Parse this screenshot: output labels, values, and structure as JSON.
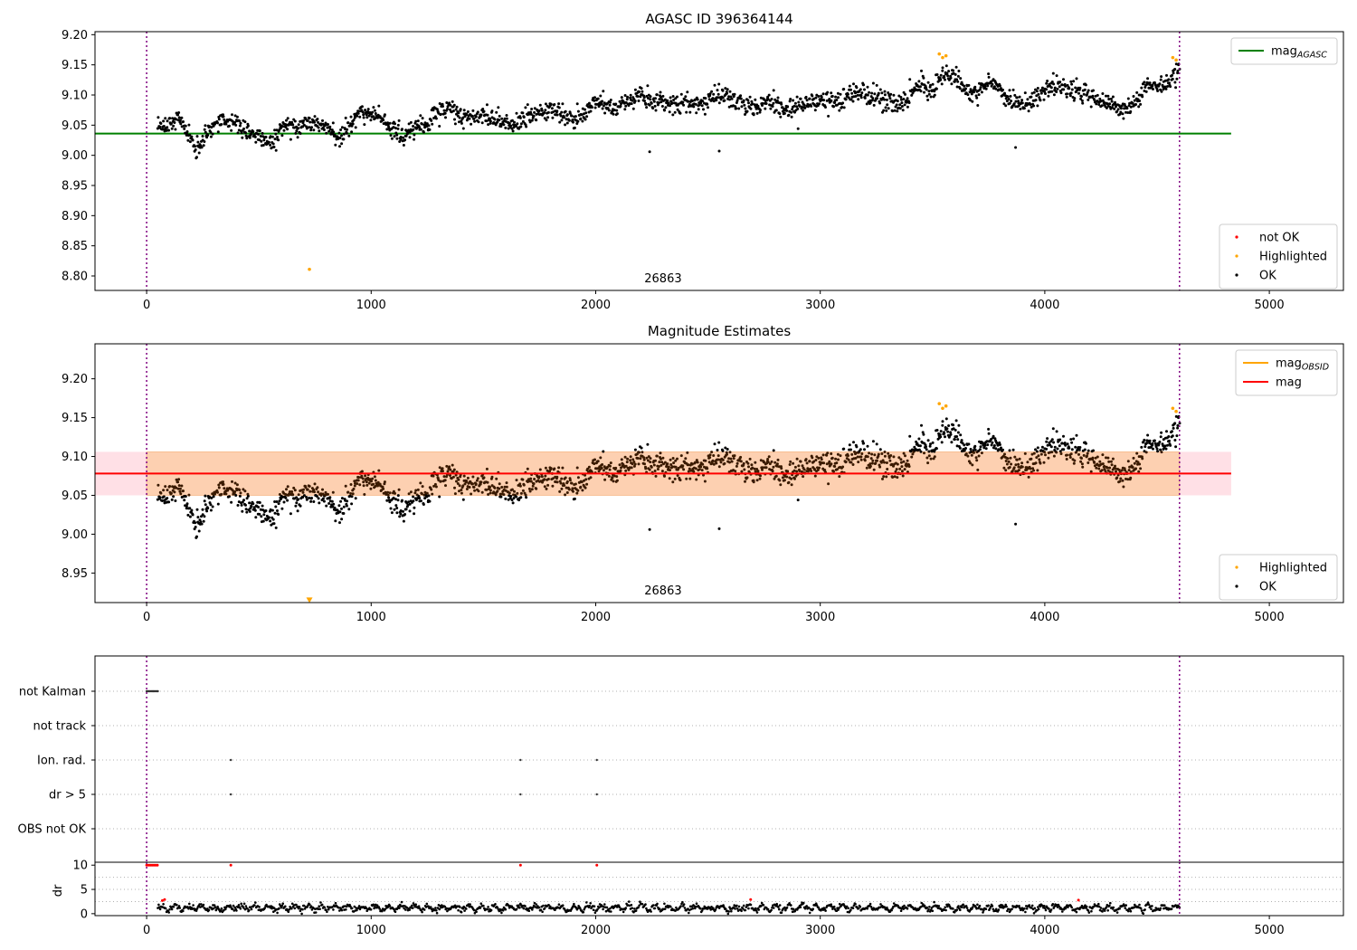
{
  "chart_data": [
    {
      "type": "scatter",
      "title": "AGASC ID 396364144",
      "xlabel": "",
      "ylabel": "",
      "xlim": [
        -230,
        5330
      ],
      "ylim": [
        8.776,
        9.205
      ],
      "xticks": [
        0,
        1000,
        2000,
        3000,
        4000,
        5000
      ],
      "yticks": [
        8.8,
        8.85,
        8.9,
        8.95,
        9.0,
        9.05,
        9.1,
        9.15,
        9.2
      ],
      "ytick_labels": [
        "8.80",
        "8.85",
        "8.90",
        "8.95",
        "9.00",
        "9.05",
        "9.10",
        "9.15",
        "9.20"
      ],
      "vlines": [
        0,
        4600
      ],
      "obsid_label": "26863",
      "obsid_label_x": 2300,
      "hline": {
        "name": "mag_AGASC",
        "value": 9.036,
        "x": [
          -230,
          4830
        ],
        "color": "#008000"
      },
      "line_legend": [
        {
          "label": "mag",
          "sub": "AGASC",
          "color": "#008000"
        }
      ],
      "point_legend": [
        {
          "label": "not OK",
          "color": "#ff0000"
        },
        {
          "label": "Highlighted",
          "color": "#ffa500"
        },
        {
          "label": "OK",
          "color": "#000000"
        }
      ],
      "series": [
        {
          "name": "OK",
          "color": "#000000",
          "trend": [
            [
              50,
              9.04
            ],
            [
              100,
              9.05
            ],
            [
              130,
              9.065
            ],
            [
              180,
              9.04
            ],
            [
              220,
              9.01
            ],
            [
              260,
              9.03
            ],
            [
              300,
              9.05
            ],
            [
              350,
              9.06
            ],
            [
              400,
              9.055
            ],
            [
              440,
              9.04
            ],
            [
              500,
              9.03
            ],
            [
              560,
              9.02
            ],
            [
              600,
              9.045
            ],
            [
              650,
              9.05
            ],
            [
              700,
              9.05
            ],
            [
              760,
              9.055
            ],
            [
              800,
              9.05
            ],
            [
              860,
              9.03
            ],
            [
              900,
              9.045
            ],
            [
              950,
              9.07
            ],
            [
              1000,
              9.07
            ],
            [
              1050,
              9.06
            ],
            [
              1100,
              9.04
            ],
            [
              1150,
              9.03
            ],
            [
              1200,
              9.05
            ],
            [
              1250,
              9.045
            ],
            [
              1300,
              9.075
            ],
            [
              1350,
              9.075
            ],
            [
              1400,
              9.065
            ],
            [
              1500,
              9.065
            ],
            [
              1560,
              9.06
            ],
            [
              1620,
              9.05
            ],
            [
              1680,
              9.06
            ],
            [
              1750,
              9.075
            ],
            [
              1800,
              9.075
            ],
            [
              1850,
              9.065
            ],
            [
              1900,
              9.06
            ],
            [
              1950,
              9.07
            ],
            [
              2000,
              9.09
            ],
            [
              2050,
              9.085
            ],
            [
              2100,
              9.075
            ],
            [
              2150,
              9.09
            ],
            [
              2200,
              9.1
            ],
            [
              2250,
              9.085
            ],
            [
              2300,
              9.085
            ],
            [
              2400,
              9.085
            ],
            [
              2500,
              9.09
            ],
            [
              2550,
              9.1
            ],
            [
              2600,
              9.095
            ],
            [
              2650,
              9.085
            ],
            [
              2700,
              9.08
            ],
            [
              2800,
              9.085
            ],
            [
              2880,
              9.075
            ],
            [
              2950,
              9.09
            ],
            [
              3000,
              9.09
            ],
            [
              3100,
              9.09
            ],
            [
              3150,
              9.105
            ],
            [
              3200,
              9.1
            ],
            [
              3300,
              9.09
            ],
            [
              3350,
              9.085
            ],
            [
              3400,
              9.1
            ],
            [
              3450,
              9.115
            ],
            [
              3500,
              9.105
            ],
            [
              3550,
              9.135
            ],
            [
              3600,
              9.13
            ],
            [
              3650,
              9.11
            ],
            [
              3700,
              9.1
            ],
            [
              3750,
              9.125
            ],
            [
              3800,
              9.11
            ],
            [
              3850,
              9.09
            ],
            [
              3900,
              9.085
            ],
            [
              3950,
              9.09
            ],
            [
              4000,
              9.11
            ],
            [
              4050,
              9.115
            ],
            [
              4100,
              9.11
            ],
            [
              4150,
              9.105
            ],
            [
              4200,
              9.1
            ],
            [
              4250,
              9.09
            ],
            [
              4300,
              9.085
            ],
            [
              4350,
              9.075
            ],
            [
              4400,
              9.085
            ],
            [
              4450,
              9.115
            ],
            [
              4500,
              9.115
            ],
            [
              4550,
              9.12
            ],
            [
              4600,
              9.14
            ]
          ],
          "noise": 0.008,
          "point_count": 1900,
          "outliers": [
            [
              2240,
              9.006
            ],
            [
              2550,
              9.007
            ],
            [
              3870,
              9.013
            ]
          ]
        },
        {
          "name": "Highlighted",
          "color": "#ffa500",
          "points": [
            [
              3530,
              9.168
            ],
            [
              3545,
              9.162
            ],
            [
              3560,
              9.165
            ],
            [
              4570,
              9.162
            ],
            [
              4585,
              9.158
            ],
            [
              725,
              8.811
            ]
          ]
        }
      ]
    },
    {
      "type": "scatter",
      "title": "Magnitude Estimates",
      "xlabel": "",
      "ylabel": "",
      "xlim": [
        -230,
        5330
      ],
      "ylim": [
        8.912,
        9.245
      ],
      "xticks": [
        0,
        1000,
        2000,
        3000,
        4000,
        5000
      ],
      "yticks": [
        8.95,
        9.0,
        9.05,
        9.1,
        9.15,
        9.2
      ],
      "ytick_labels": [
        "8.95",
        "9.00",
        "9.05",
        "9.10",
        "9.15",
        "9.20"
      ],
      "vlines": [
        0,
        4600
      ],
      "obsid_label": "26863",
      "obsid_label_x": 2300,
      "band": {
        "low": 9.05,
        "high": 9.106,
        "x": [
          -230,
          4830
        ],
        "fill_pink": "#ffe0e6",
        "fill_orange": "#fdd0b1"
      },
      "hlines": [
        {
          "name": "mag",
          "value": 9.078,
          "x": [
            -230,
            4830
          ],
          "color": "#ff0000"
        }
      ],
      "line_legend": [
        {
          "label": "mag",
          "sub": "OBSID",
          "color": "#ffa500"
        },
        {
          "label": "mag",
          "sub": "",
          "color": "#ff0000"
        }
      ],
      "point_legend": [
        {
          "label": "Highlighted",
          "color": "#ffa500"
        },
        {
          "label": "OK",
          "color": "#000000"
        }
      ],
      "series": [
        {
          "name": "OK",
          "color": "#000000",
          "in_band_color": "#3a1a00",
          "same_as_panel": 0,
          "outliers": [
            [
              2240,
              9.006
            ],
            [
              2550,
              9.007
            ],
            [
              3870,
              9.013
            ]
          ]
        },
        {
          "name": "Highlighted",
          "color": "#ffa500",
          "points": [
            [
              3530,
              9.168
            ],
            [
              3545,
              9.162
            ],
            [
              3560,
              9.165
            ],
            [
              4570,
              9.162
            ],
            [
              4585,
              9.158
            ]
          ],
          "offscale_marker": [
            725,
            8.915
          ]
        }
      ]
    },
    {
      "type": "scatter",
      "title": "",
      "xlim": [
        -230,
        5330
      ],
      "xticks": [
        0,
        1000,
        2000,
        3000,
        4000,
        5000
      ],
      "vlines": [
        0,
        4600
      ],
      "flag_rows": [
        "not Kalman",
        "not track",
        "Ion. rad.",
        "dr > 5",
        "OBS not OK"
      ],
      "flag_points": [
        {
          "row": "not Kalman",
          "x": [
            0,
            5,
            10,
            15,
            20,
            25,
            30,
            35,
            40,
            45,
            50
          ]
        },
        {
          "row": "Ion. rad.",
          "x": [
            375,
            1665,
            2005
          ]
        },
        {
          "row": "dr > 5",
          "x": [
            375,
            1665,
            2005
          ]
        }
      ]
    },
    {
      "type": "scatter",
      "title": "",
      "ylabel": "dr",
      "xlim": [
        -230,
        5330
      ],
      "ylim": [
        -0.4,
        10.6
      ],
      "xticks": [
        0,
        1000,
        2000,
        3000,
        4000,
        5000
      ],
      "yticks": [
        0,
        5,
        10
      ],
      "ytick_labels": [
        "0",
        "5",
        "10"
      ],
      "vlines": [
        0,
        4600
      ],
      "series": [
        {
          "name": "dr",
          "color": "#000000",
          "base": 1.2,
          "noise": 0.7,
          "x_start": 50,
          "x_end": 4600,
          "point_count": 1300
        },
        {
          "name": "dr capped",
          "color": "#ff0000",
          "points": [
            [
              0,
              10
            ],
            [
              8,
              10
            ],
            [
              16,
              10
            ],
            [
              24,
              10
            ],
            [
              32,
              10
            ],
            [
              40,
              10
            ],
            [
              48,
              10
            ],
            [
              375,
              10
            ],
            [
              1665,
              10
            ],
            [
              2005,
              10
            ],
            [
              70,
              2.7
            ],
            [
              80,
              2.9
            ],
            [
              2690,
              2.9
            ],
            [
              4150,
              2.8
            ]
          ]
        }
      ]
    }
  ]
}
